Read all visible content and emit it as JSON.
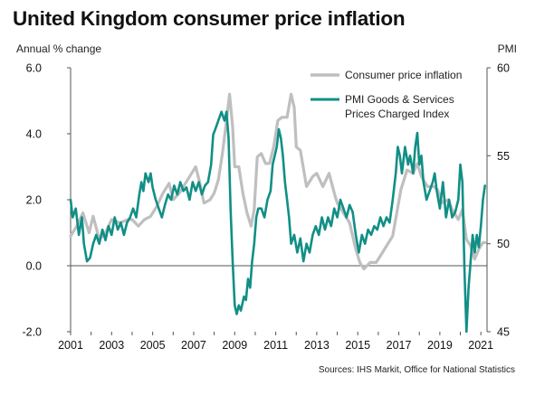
{
  "title": "United Kingdom consumer price inflation",
  "sources": "Sources: IHS Markit, Office for National Statistics",
  "colors": {
    "cpi": "#bfbfbf",
    "pmi": "#118f86",
    "axis": "#555555",
    "text": "#111111"
  },
  "chart_data": {
    "type": "line",
    "title": "United Kingdom consumer price inflation",
    "y_left_label": "Annual % change",
    "y_right_label": "PMI",
    "y_left_range": [
      -2.0,
      6.0
    ],
    "y_left_ticks": [
      "-2.0",
      "0.0",
      "2.0",
      "4.0",
      "6.0"
    ],
    "y_right_range": [
      45,
      60
    ],
    "y_right_ticks": [
      "45",
      "50",
      "55",
      "60"
    ],
    "x_range": [
      2001,
      2021.3
    ],
    "x_ticks": [
      "2001",
      "2003",
      "2005",
      "2007",
      "2009",
      "2011",
      "2013",
      "2015",
      "2017",
      "2019",
      "2021"
    ],
    "grid": false,
    "legend_position": "top-right",
    "series": [
      {
        "name": "Consumer price inflation",
        "axis": "left",
        "color": "#bfbfbf",
        "points": [
          [
            2001.0,
            0.9
          ],
          [
            2001.3,
            1.2
          ],
          [
            2001.6,
            1.6
          ],
          [
            2001.9,
            1.0
          ],
          [
            2002.1,
            1.5
          ],
          [
            2002.4,
            0.8
          ],
          [
            2002.7,
            1.0
          ],
          [
            2003.0,
            1.4
          ],
          [
            2003.4,
            1.3
          ],
          [
            2003.8,
            1.4
          ],
          [
            2004.0,
            1.4
          ],
          [
            2004.3,
            1.2
          ],
          [
            2004.6,
            1.4
          ],
          [
            2004.9,
            1.5
          ],
          [
            2005.2,
            1.8
          ],
          [
            2005.5,
            2.2
          ],
          [
            2005.8,
            2.5
          ],
          [
            2006.0,
            2.0
          ],
          [
            2006.3,
            2.2
          ],
          [
            2006.6,
            2.5
          ],
          [
            2006.9,
            2.8
          ],
          [
            2007.1,
            3.0
          ],
          [
            2007.3,
            2.5
          ],
          [
            2007.5,
            1.9
          ],
          [
            2007.8,
            2.0
          ],
          [
            2008.0,
            2.2
          ],
          [
            2008.2,
            2.6
          ],
          [
            2008.4,
            3.4
          ],
          [
            2008.6,
            4.4
          ],
          [
            2008.75,
            5.2
          ],
          [
            2008.9,
            4.2
          ],
          [
            2009.0,
            3.0
          ],
          [
            2009.2,
            3.0
          ],
          [
            2009.4,
            2.2
          ],
          [
            2009.6,
            1.6
          ],
          [
            2009.8,
            1.2
          ],
          [
            2009.95,
            1.7
          ],
          [
            2010.1,
            3.3
          ],
          [
            2010.3,
            3.4
          ],
          [
            2010.5,
            3.1
          ],
          [
            2010.7,
            3.1
          ],
          [
            2010.9,
            3.6
          ],
          [
            2011.1,
            4.4
          ],
          [
            2011.3,
            4.5
          ],
          [
            2011.55,
            4.5
          ],
          [
            2011.75,
            5.2
          ],
          [
            2011.9,
            4.8
          ],
          [
            2012.0,
            3.6
          ],
          [
            2012.2,
            3.5
          ],
          [
            2012.5,
            2.4
          ],
          [
            2012.8,
            2.7
          ],
          [
            2013.0,
            2.8
          ],
          [
            2013.3,
            2.4
          ],
          [
            2013.6,
            2.8
          ],
          [
            2013.9,
            2.1
          ],
          [
            2014.0,
            1.9
          ],
          [
            2014.3,
            1.6
          ],
          [
            2014.6,
            1.3
          ],
          [
            2014.9,
            0.5
          ],
          [
            2015.1,
            0.1
          ],
          [
            2015.3,
            -0.1
          ],
          [
            2015.6,
            0.1
          ],
          [
            2015.9,
            0.1
          ],
          [
            2016.1,
            0.3
          ],
          [
            2016.4,
            0.6
          ],
          [
            2016.7,
            0.9
          ],
          [
            2016.9,
            1.6
          ],
          [
            2017.1,
            2.3
          ],
          [
            2017.4,
            2.9
          ],
          [
            2017.7,
            2.8
          ],
          [
            2017.9,
            3.1
          ],
          [
            2018.1,
            2.7
          ],
          [
            2018.4,
            2.4
          ],
          [
            2018.7,
            2.4
          ],
          [
            2018.9,
            2.3
          ],
          [
            2019.1,
            1.9
          ],
          [
            2019.4,
            2.0
          ],
          [
            2019.6,
            1.7
          ],
          [
            2019.9,
            1.4
          ],
          [
            2020.1,
            1.7
          ],
          [
            2020.3,
            0.8
          ],
          [
            2020.5,
            0.6
          ],
          [
            2020.7,
            0.2
          ],
          [
            2020.9,
            0.5
          ],
          [
            2021.1,
            0.7
          ],
          [
            2021.2,
            0.7
          ]
        ]
      },
      {
        "name": "PMI Goods & Services Prices Charged Index",
        "axis": "right",
        "color": "#118f86",
        "points": [
          [
            2001.0,
            52.5
          ],
          [
            2001.1,
            51.5
          ],
          [
            2001.25,
            52.0
          ],
          [
            2001.4,
            50.5
          ],
          [
            2001.55,
            51.5
          ],
          [
            2001.65,
            50.0
          ],
          [
            2001.8,
            49.0
          ],
          [
            2001.95,
            49.2
          ],
          [
            2002.1,
            50.0
          ],
          [
            2002.25,
            50.5
          ],
          [
            2002.4,
            50.0
          ],
          [
            2002.55,
            50.8
          ],
          [
            2002.7,
            50.2
          ],
          [
            2002.85,
            51.0
          ],
          [
            2003.0,
            50.5
          ],
          [
            2003.15,
            51.5
          ],
          [
            2003.3,
            50.8
          ],
          [
            2003.45,
            51.2
          ],
          [
            2003.6,
            50.5
          ],
          [
            2003.75,
            51.2
          ],
          [
            2003.9,
            51.5
          ],
          [
            2004.05,
            52.0
          ],
          [
            2004.2,
            51.5
          ],
          [
            2004.35,
            52.8
          ],
          [
            2004.45,
            53.5
          ],
          [
            2004.55,
            53.0
          ],
          [
            2004.65,
            54.0
          ],
          [
            2004.8,
            53.5
          ],
          [
            2004.9,
            54.0
          ],
          [
            2005.0,
            53.2
          ],
          [
            2005.15,
            52.5
          ],
          [
            2005.3,
            52.0
          ],
          [
            2005.45,
            51.5
          ],
          [
            2005.6,
            52.2
          ],
          [
            2005.75,
            52.8
          ],
          [
            2005.9,
            52.5
          ],
          [
            2006.05,
            53.3
          ],
          [
            2006.2,
            52.8
          ],
          [
            2006.35,
            53.5
          ],
          [
            2006.5,
            53.0
          ],
          [
            2006.65,
            53.2
          ],
          [
            2006.8,
            52.5
          ],
          [
            2006.95,
            53.5
          ],
          [
            2007.1,
            53.0
          ],
          [
            2007.25,
            53.5
          ],
          [
            2007.4,
            52.8
          ],
          [
            2007.55,
            53.3
          ],
          [
            2007.7,
            53.5
          ],
          [
            2007.85,
            54.5
          ],
          [
            2007.95,
            56.2
          ],
          [
            2008.05,
            56.5
          ],
          [
            2008.2,
            57.0
          ],
          [
            2008.35,
            57.5
          ],
          [
            2008.5,
            57.0
          ],
          [
            2008.6,
            57.5
          ],
          [
            2008.7,
            56.0
          ],
          [
            2008.8,
            52.0
          ],
          [
            2008.9,
            49.0
          ],
          [
            2009.0,
            46.5
          ],
          [
            2009.1,
            46.0
          ],
          [
            2009.2,
            46.5
          ],
          [
            2009.3,
            46.2
          ],
          [
            2009.45,
            47.0
          ],
          [
            2009.55,
            46.8
          ],
          [
            2009.65,
            48.0
          ],
          [
            2009.75,
            47.5
          ],
          [
            2009.85,
            49.0
          ],
          [
            2009.95,
            50.0
          ],
          [
            2010.05,
            51.5
          ],
          [
            2010.15,
            52.0
          ],
          [
            2010.3,
            52.0
          ],
          [
            2010.45,
            51.5
          ],
          [
            2010.6,
            52.5
          ],
          [
            2010.75,
            53.0
          ],
          [
            2010.85,
            54.5
          ],
          [
            2010.95,
            55.0
          ],
          [
            2011.05,
            55.5
          ],
          [
            2011.15,
            56.5
          ],
          [
            2011.25,
            56.0
          ],
          [
            2011.35,
            55.0
          ],
          [
            2011.45,
            53.5
          ],
          [
            2011.55,
            52.5
          ],
          [
            2011.65,
            51.5
          ],
          [
            2011.75,
            50.0
          ],
          [
            2011.9,
            50.5
          ],
          [
            2012.05,
            49.5
          ],
          [
            2012.2,
            50.3
          ],
          [
            2012.35,
            49.0
          ],
          [
            2012.5,
            50.0
          ],
          [
            2012.65,
            49.5
          ],
          [
            2012.8,
            50.5
          ],
          [
            2012.95,
            51.0
          ],
          [
            2013.1,
            50.5
          ],
          [
            2013.25,
            51.5
          ],
          [
            2013.4,
            50.8
          ],
          [
            2013.55,
            51.5
          ],
          [
            2013.7,
            51.0
          ],
          [
            2013.85,
            52.0
          ],
          [
            2014.0,
            51.5
          ],
          [
            2014.15,
            52.5
          ],
          [
            2014.3,
            52.0
          ],
          [
            2014.45,
            51.5
          ],
          [
            2014.6,
            52.2
          ],
          [
            2014.75,
            51.8
          ],
          [
            2014.9,
            50.5
          ],
          [
            2015.05,
            49.5
          ],
          [
            2015.2,
            50.5
          ],
          [
            2015.35,
            50.0
          ],
          [
            2015.5,
            50.8
          ],
          [
            2015.65,
            50.5
          ],
          [
            2015.8,
            51.0
          ],
          [
            2015.95,
            50.8
          ],
          [
            2016.1,
            51.5
          ],
          [
            2016.25,
            51.0
          ],
          [
            2016.4,
            51.5
          ],
          [
            2016.55,
            51.2
          ],
          [
            2016.7,
            52.5
          ],
          [
            2016.85,
            54.0
          ],
          [
            2016.95,
            55.5
          ],
          [
            2017.05,
            55.0
          ],
          [
            2017.15,
            54.0
          ],
          [
            2017.3,
            55.5
          ],
          [
            2017.45,
            54.5
          ],
          [
            2017.55,
            55.0
          ],
          [
            2017.7,
            54.0
          ],
          [
            2017.8,
            55.5
          ],
          [
            2017.9,
            56.3
          ],
          [
            2018.0,
            54.5
          ],
          [
            2018.1,
            55.0
          ],
          [
            2018.2,
            53.5
          ],
          [
            2018.35,
            52.5
          ],
          [
            2018.5,
            53.0
          ],
          [
            2018.65,
            53.5
          ],
          [
            2018.75,
            54.0
          ],
          [
            2018.85,
            53.0
          ],
          [
            2019.0,
            52.0
          ],
          [
            2019.15,
            53.5
          ],
          [
            2019.3,
            51.5
          ],
          [
            2019.45,
            52.5
          ],
          [
            2019.6,
            51.5
          ],
          [
            2019.75,
            51.8
          ],
          [
            2019.9,
            52.5
          ],
          [
            2020.0,
            54.5
          ],
          [
            2020.1,
            53.5
          ],
          [
            2020.2,
            48.5
          ],
          [
            2020.3,
            45.0
          ],
          [
            2020.4,
            47.5
          ],
          [
            2020.5,
            49.0
          ],
          [
            2020.6,
            50.5
          ],
          [
            2020.7,
            49.5
          ],
          [
            2020.8,
            50.5
          ],
          [
            2020.9,
            49.8
          ],
          [
            2021.0,
            51.0
          ],
          [
            2021.1,
            52.5
          ],
          [
            2021.2,
            53.3
          ]
        ]
      }
    ]
  }
}
